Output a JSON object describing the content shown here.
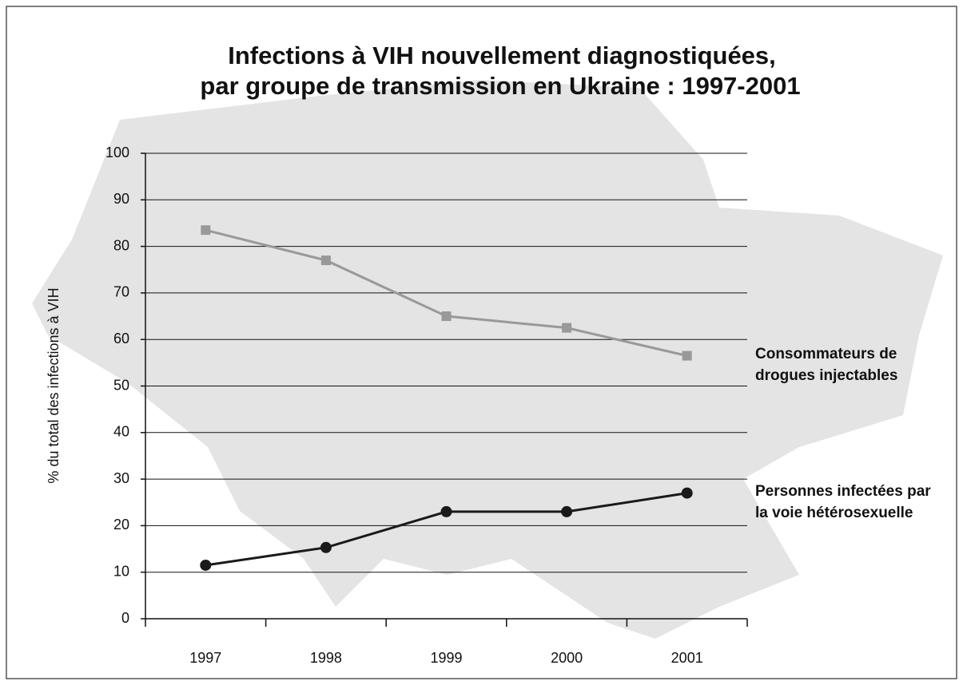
{
  "chart_data": {
    "type": "line",
    "title": [
      "Infections à VIH nouvellement diagnostiquées,",
      "par groupe de transmission en Ukraine : 1997-2001"
    ],
    "y_label": "% du total des infections à VIH",
    "categories": [
      "1997",
      "1998",
      "1999",
      "2000",
      "2001"
    ],
    "series": [
      {
        "name": "Consommateurs de drogues injectables",
        "color": "#999999",
        "marker": "square",
        "values": [
          83.5,
          77,
          65,
          62.5,
          56.5
        ]
      },
      {
        "name": "Personnes infectées par la voie hétérosexuelle",
        "color": "#1a1a1a",
        "marker": "circle",
        "values": [
          11.5,
          15.3,
          23,
          23,
          27
        ]
      }
    ],
    "ylim": [
      0,
      100
    ],
    "yticks": [
      0,
      10,
      20,
      30,
      40,
      50,
      60,
      70,
      80,
      90,
      100
    ],
    "grid": true
  }
}
